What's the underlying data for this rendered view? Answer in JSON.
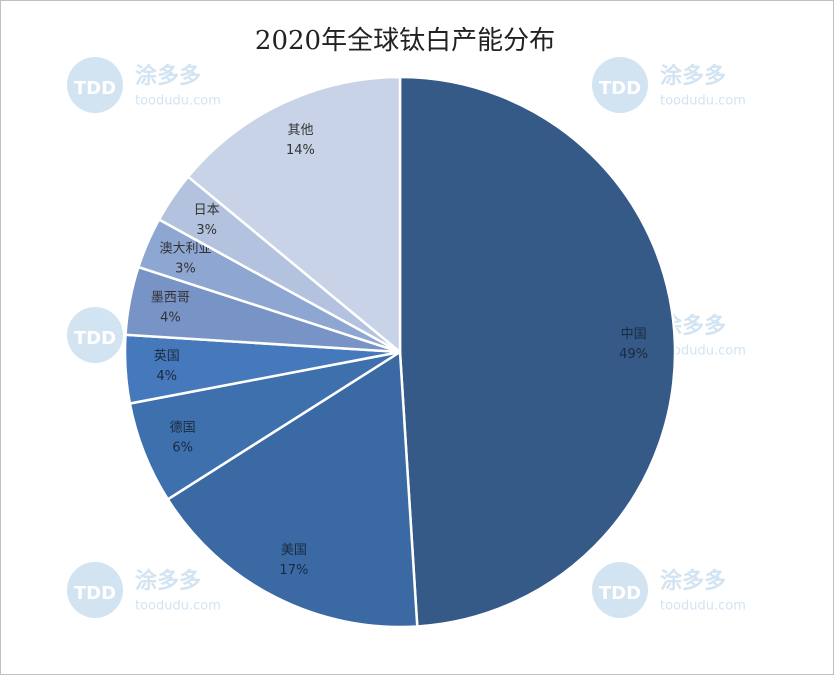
{
  "chart_data": {
    "type": "pie",
    "title": "2020年全球钛白产能分布",
    "categories": [
      "中国",
      "美国",
      "德国",
      "英国",
      "墨西哥",
      "澳大利亚",
      "日本",
      "其他"
    ],
    "values": [
      49,
      17,
      6,
      4,
      4,
      3,
      3,
      14
    ],
    "value_labels": [
      "49%",
      "17%",
      "6%",
      "4%",
      "4%",
      "3%",
      "3%",
      "14%"
    ],
    "colors": [
      "#355a87",
      "#3a69a3",
      "#3d70ad",
      "#4679bb",
      "#7893c6",
      "#8ea6d2",
      "#b3c2de",
      "#c9d3e7"
    ]
  },
  "watermark": {
    "logo": "TDD",
    "name": "涂多多",
    "url": "toodudu.com"
  }
}
